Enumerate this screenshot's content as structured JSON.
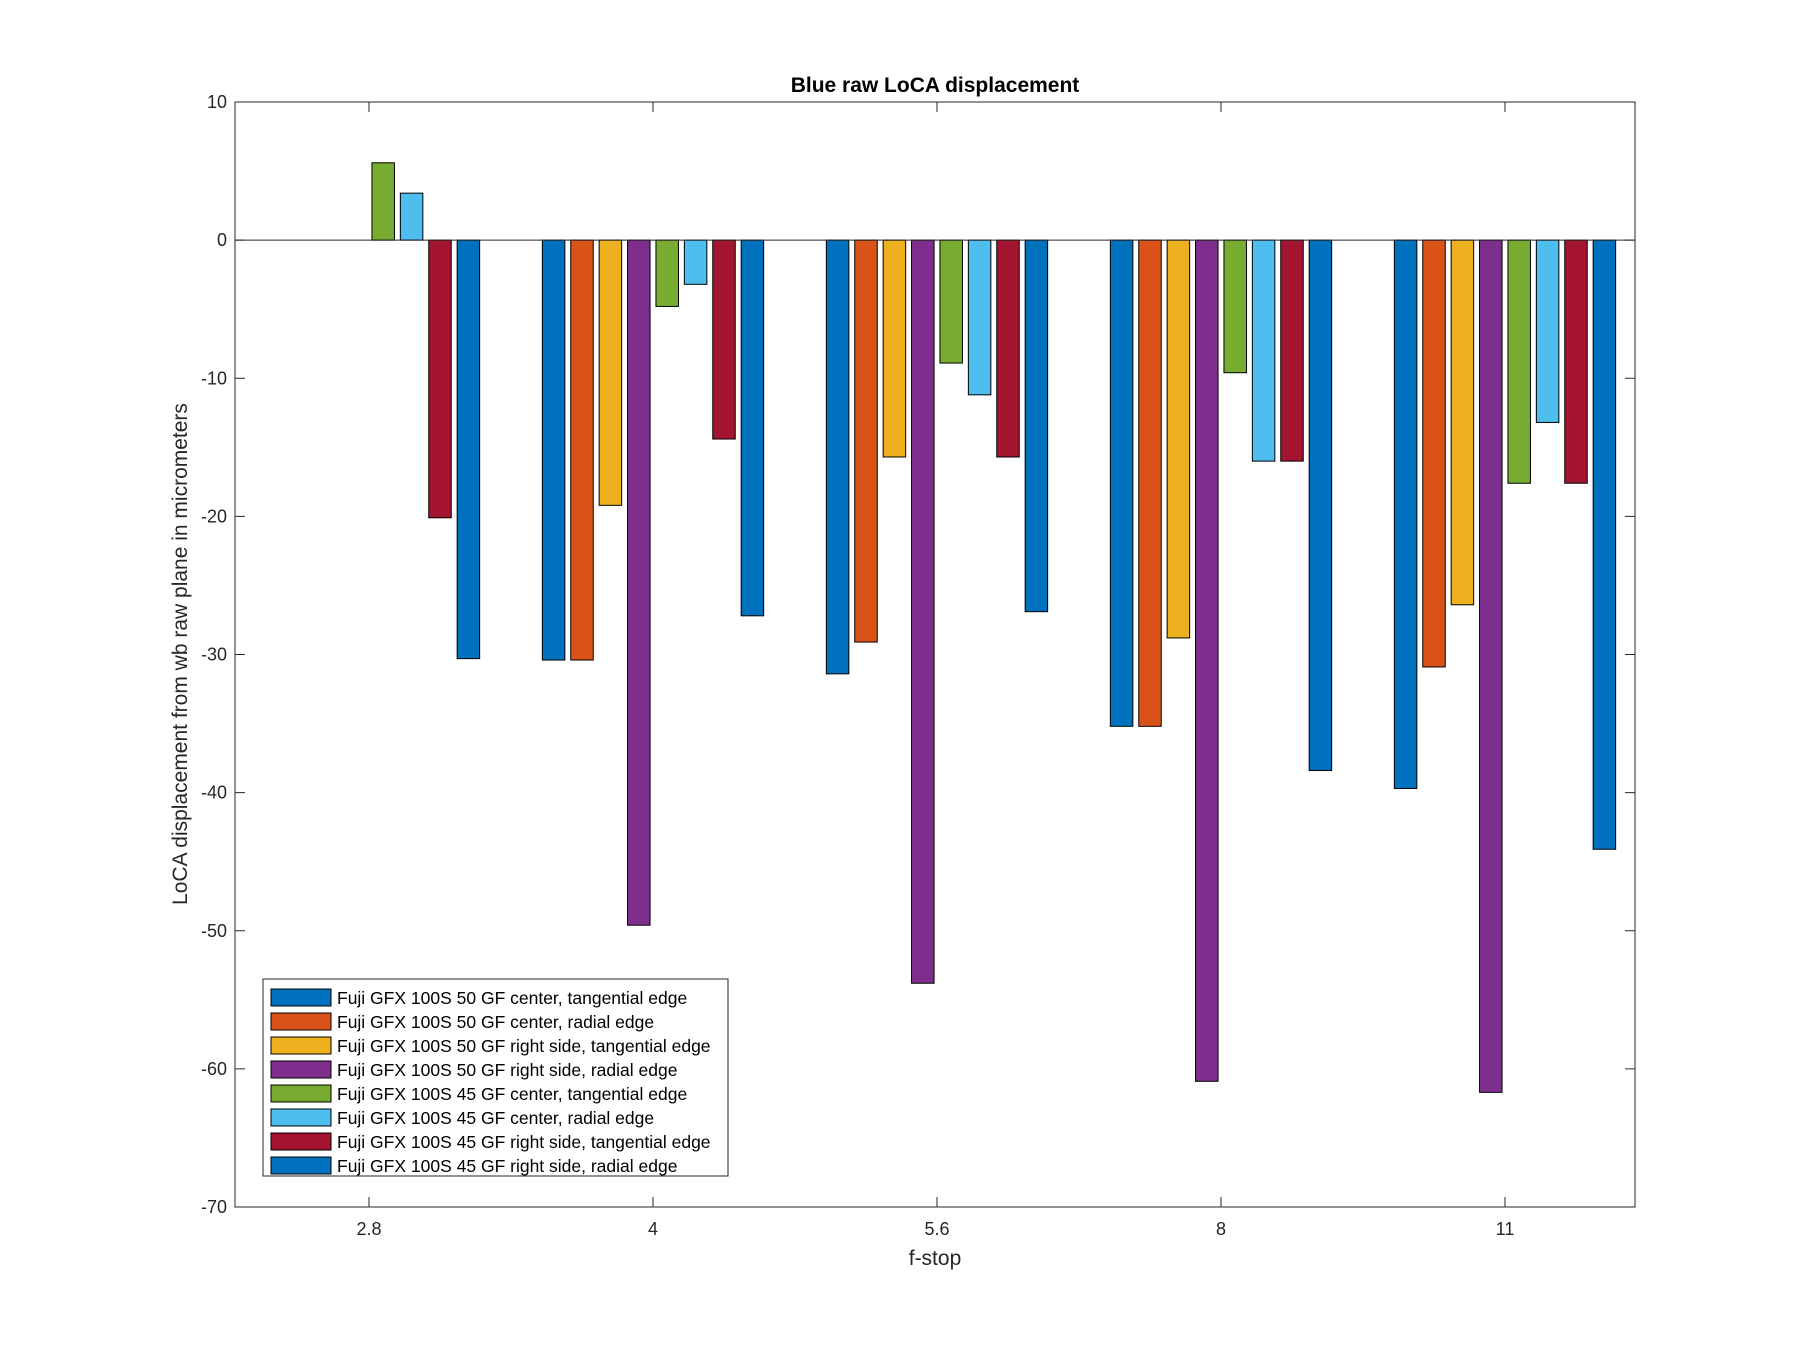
{
  "chart_data": {
    "type": "bar",
    "title": "Blue raw  LoCA displacement",
    "xlabel": "f-stop",
    "ylabel": "LoCA displacement from wb raw plane in micrometers",
    "categories": [
      "2.8",
      "4",
      "5.6",
      "8",
      "11"
    ],
    "ylim": [
      -70,
      10
    ],
    "yticks": [
      10,
      0,
      -10,
      -20,
      -30,
      -40,
      -50,
      -60,
      -70
    ],
    "grid": false,
    "legend_position": "bottom-left",
    "series": [
      {
        "name": "Fuji GFX 100S 50 GF center, tangential edge",
        "color": "#0072BD",
        "values": [
          0,
          -30.4,
          -31.4,
          -35.2,
          -39.7
        ]
      },
      {
        "name": "Fuji GFX 100S 50 GF center, radial edge",
        "color": "#D95319",
        "values": [
          0,
          -30.4,
          -29.1,
          -35.2,
          -30.9
        ]
      },
      {
        "name": "Fuji GFX 100S 50 GF right side, tangential edge",
        "color": "#EDB120",
        "values": [
          0,
          -19.2,
          -15.7,
          -28.8,
          -26.4
        ]
      },
      {
        "name": "Fuji GFX 100S 50 GF right side, radial edge",
        "color": "#7E2F8E",
        "values": [
          0,
          -49.6,
          -53.8,
          -60.9,
          -61.7
        ]
      },
      {
        "name": "Fuji GFX 100S 45 GF center, tangential edge",
        "color": "#77AC30",
        "values": [
          5.6,
          -4.8,
          -8.9,
          -9.6,
          -17.6
        ]
      },
      {
        "name": "Fuji GFX 100S 45 GF center, radial edge",
        "color": "#4DBEEE",
        "values": [
          3.4,
          -3.2,
          -11.2,
          -16.0,
          -13.2
        ]
      },
      {
        "name": "Fuji GFX 100S 45 GF right side, tangential edge",
        "color": "#A2142F",
        "values": [
          -20.1,
          -14.4,
          -15.7,
          -16.0,
          -17.6
        ]
      },
      {
        "name": "Fuji GFX 100S 45 GF right side, radial edge",
        "color": "#0072BD",
        "values": [
          -30.3,
          -27.2,
          -26.9,
          -38.4,
          -44.1
        ]
      }
    ]
  }
}
